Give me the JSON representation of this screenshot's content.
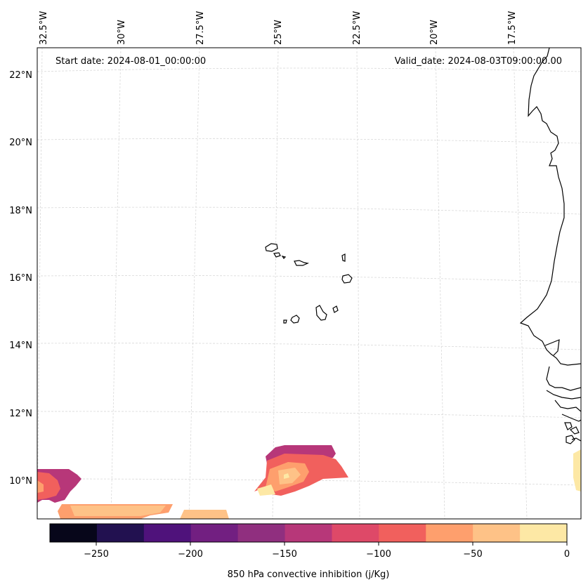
{
  "annotations": {
    "start_date": "Start date: 2024-08-01_00:00:00",
    "valid_date": "Valid_date: 2024-08-03T09:00:00.00"
  },
  "axes": {
    "lon_labels": [
      "32.5°W",
      "30°W",
      "27.5°W",
      "25°W",
      "22.5°W",
      "20°W",
      "17.5°W"
    ],
    "lat_labels": [
      "22°N",
      "20°N",
      "18°N",
      "16°N",
      "14°N",
      "12°N",
      "10°N"
    ]
  },
  "colorbar": {
    "label": "850 hPa convective inhibition (j/Kg)",
    "ticks": [
      "−250",
      "−200",
      "−150",
      "−100",
      "−50",
      "0"
    ],
    "colors": [
      "#07061a",
      "#221150",
      "#4f127b",
      "#721f81",
      "#902f7f",
      "#b73779",
      "#de4968",
      "#f1605d",
      "#fe9f6d",
      "#fec287",
      "#fde8a5"
    ]
  },
  "chart_data": {
    "type": "contourf",
    "variable": "850 hPa convective inhibition",
    "units": "j/Kg",
    "levels": [
      -275,
      -250,
      -225,
      -200,
      -175,
      -150,
      -125,
      -100,
      -75,
      -50,
      -25,
      0
    ],
    "lon_range": [
      -33,
      -15.5
    ],
    "lat_range": [
      9,
      22.5
    ]
  }
}
